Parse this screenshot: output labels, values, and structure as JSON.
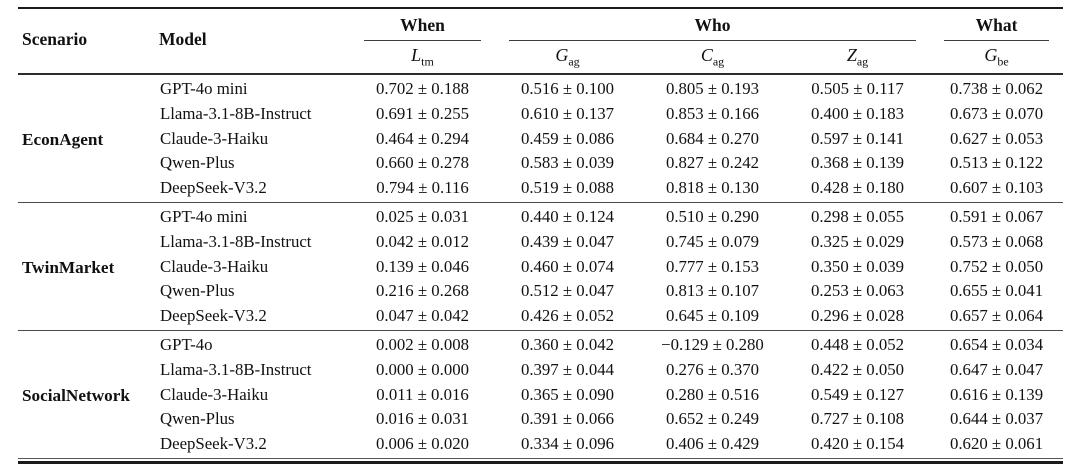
{
  "table": {
    "header": {
      "scenario": "Scenario",
      "model": "Model"
    },
    "groups": [
      {
        "label": "When"
      },
      {
        "label": "Who"
      },
      {
        "label": "What"
      }
    ],
    "metrics": [
      {
        "base": "L",
        "sub": "tm"
      },
      {
        "base": "G",
        "sub": "ag"
      },
      {
        "base": "C",
        "sub": "ag"
      },
      {
        "base": "Z",
        "sub": "ag"
      },
      {
        "base": "G",
        "sub": "be"
      }
    ],
    "blocks": [
      {
        "scenario": "EconAgent",
        "rows": [
          {
            "model": "GPT-4o mini",
            "values": [
              "0.702 ± 0.188",
              "0.516 ± 0.100",
              "0.805 ± 0.193",
              "0.505 ± 0.117",
              "0.738 ± 0.062"
            ]
          },
          {
            "model": "Llama-3.1-8B-Instruct",
            "values": [
              "0.691 ± 0.255",
              "0.610 ± 0.137",
              "0.853 ± 0.166",
              "0.400 ± 0.183",
              "0.673 ± 0.070"
            ]
          },
          {
            "model": "Claude-3-Haiku",
            "values": [
              "0.464 ± 0.294",
              "0.459 ± 0.086",
              "0.684 ± 0.270",
              "0.597 ± 0.141",
              "0.627 ± 0.053"
            ]
          },
          {
            "model": "Qwen-Plus",
            "values": [
              "0.660 ± 0.278",
              "0.583 ± 0.039",
              "0.827 ± 0.242",
              "0.368 ± 0.139",
              "0.513 ± 0.122"
            ]
          },
          {
            "model": "DeepSeek-V3.2",
            "values": [
              "0.794 ± 0.116",
              "0.519 ± 0.088",
              "0.818 ± 0.130",
              "0.428 ± 0.180",
              "0.607 ± 0.103"
            ]
          }
        ]
      },
      {
        "scenario": "TwinMarket",
        "rows": [
          {
            "model": "GPT-4o mini",
            "values": [
              "0.025 ± 0.031",
              "0.440 ± 0.124",
              "0.510 ± 0.290",
              "0.298 ± 0.055",
              "0.591 ± 0.067"
            ]
          },
          {
            "model": "Llama-3.1-8B-Instruct",
            "values": [
              "0.042 ± 0.012",
              "0.439 ± 0.047",
              "0.745 ± 0.079",
              "0.325 ± 0.029",
              "0.573 ± 0.068"
            ]
          },
          {
            "model": "Claude-3-Haiku",
            "values": [
              "0.139 ± 0.046",
              "0.460 ± 0.074",
              "0.777 ± 0.153",
              "0.350 ± 0.039",
              "0.752 ± 0.050"
            ]
          },
          {
            "model": "Qwen-Plus",
            "values": [
              "0.216 ± 0.268",
              "0.512 ± 0.047",
              "0.813 ± 0.107",
              "0.253 ± 0.063",
              "0.655 ± 0.041"
            ]
          },
          {
            "model": "DeepSeek-V3.2",
            "values": [
              "0.047 ± 0.042",
              "0.426 ± 0.052",
              "0.645 ± 0.109",
              "0.296 ± 0.028",
              "0.657 ± 0.064"
            ]
          }
        ]
      },
      {
        "scenario": "SocialNetwork",
        "rows": [
          {
            "model": "GPT-4o",
            "values": [
              "0.002 ± 0.008",
              "0.360 ± 0.042",
              "−0.129 ± 0.280",
              "0.448 ± 0.052",
              "0.654 ± 0.034"
            ]
          },
          {
            "model": "Llama-3.1-8B-Instruct",
            "values": [
              "0.000 ± 0.000",
              "0.397 ± 0.044",
              "0.276 ± 0.370",
              "0.422 ± 0.050",
              "0.647 ± 0.047"
            ]
          },
          {
            "model": "Claude-3-Haiku",
            "values": [
              "0.011 ± 0.016",
              "0.365 ± 0.090",
              "0.280 ± 0.516",
              "0.549 ± 0.127",
              "0.616 ± 0.139"
            ]
          },
          {
            "model": "Qwen-Plus",
            "values": [
              "0.016 ± 0.031",
              "0.391 ± 0.066",
              "0.652 ± 0.249",
              "0.727 ± 0.108",
              "0.644 ± 0.037"
            ]
          },
          {
            "model": "DeepSeek-V3.2",
            "values": [
              "0.006 ± 0.020",
              "0.334 ± 0.096",
              "0.406 ± 0.429",
              "0.420 ± 0.154",
              "0.620 ± 0.061"
            ]
          }
        ]
      }
    ]
  },
  "colors": {
    "background": "#ffffff",
    "text": "#111111",
    "rule_heavy": "#1b1b1b",
    "rule_light": "#4a4a4a"
  }
}
